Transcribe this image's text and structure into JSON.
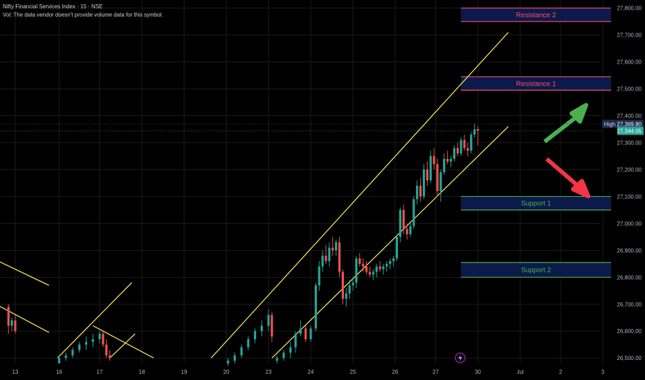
{
  "header": {
    "title": "Nifty Financial Services Index · 15 · NSE",
    "volume_note": "Vol: The data vendor doesn't provide volume data for this symbol."
  },
  "chart_data": {
    "type": "candlestick",
    "symbol": "Nifty Financial Services Index",
    "interval": "15",
    "exchange": "NSE",
    "ylim": [
      26480,
      27830
    ],
    "y_ticks": [
      26500,
      26600,
      26700,
      26800,
      26900,
      27000,
      27100,
      27200,
      27300,
      27400,
      27500,
      27600,
      27700,
      27800
    ],
    "y_tick_labels": [
      "26,500.00",
      "26,600.00",
      "26,700.00",
      "26,800.00",
      "26,900.00",
      "27,000.00",
      "27,100.00",
      "27,200.00",
      "27,300.00",
      "27,400.00",
      "27,500.00",
      "27,600.00",
      "27,700.00",
      "27,800.00"
    ],
    "x_ticks": [
      {
        "label": "13",
        "i": 0
      },
      {
        "label": "16",
        "i": 2.6
      },
      {
        "label": "17",
        "i": 5.0
      },
      {
        "label": "18",
        "i": 7.5
      },
      {
        "label": "19",
        "i": 10.0
      },
      {
        "label": "20",
        "i": 12.5
      },
      {
        "label": "23",
        "i": 15.0
      },
      {
        "label": "24",
        "i": 17.5
      },
      {
        "label": "25",
        "i": 20.0
      },
      {
        "label": "26",
        "i": 22.5
      },
      {
        "label": "27",
        "i": 24.9
      },
      {
        "label": "30",
        "i": 27.4
      },
      {
        "label": "Jul",
        "i": 29.9
      },
      {
        "label": "2",
        "i": 32.3
      },
      {
        "label": "3",
        "i": 34.8
      }
    ],
    "price_markers": {
      "high_label": "High",
      "high_value": 27369.8,
      "high_text": "27,369.80",
      "last_value": 27344.05,
      "last_text": "27,344.05"
    },
    "zones": [
      {
        "label": "Resistance 2",
        "top": 27800,
        "bottom": 27750,
        "color": "#ff4d6d"
      },
      {
        "label": "Resistance 1",
        "top": 27545,
        "bottom": 27495,
        "color": "#ff4d6d"
      },
      {
        "label": "Support 1",
        "top": 27100,
        "bottom": 27050,
        "color": "#4caf50"
      },
      {
        "label": "Support 2",
        "top": 26855,
        "bottom": 26800,
        "color": "#4caf50"
      }
    ],
    "trendlines": [
      {
        "from": {
          "i": -1.0,
          "y": 26860
        },
        "to": {
          "i": 2.0,
          "y": 26770
        }
      },
      {
        "from": {
          "i": -1.0,
          "y": 26695
        },
        "to": {
          "i": 2.0,
          "y": 26595
        }
      },
      {
        "from": {
          "i": 2.5,
          "y": 26500
        },
        "to": {
          "i": 6.9,
          "y": 26780
        }
      },
      {
        "from": {
          "i": 4.6,
          "y": 26620
        },
        "to": {
          "i": 8.2,
          "y": 26500
        }
      },
      {
        "from": {
          "i": 5.6,
          "y": 26500
        },
        "to": {
          "i": 7.1,
          "y": 26590
        }
      },
      {
        "from": {
          "i": 11.6,
          "y": 26500
        },
        "to": {
          "i": 29.2,
          "y": 27710
        }
      },
      {
        "from": {
          "i": 15.2,
          "y": 26500
        },
        "to": {
          "i": 29.2,
          "y": 27360
        }
      }
    ],
    "arrows": [
      {
        "direction": "up",
        "color": "#4caf50"
      },
      {
        "direction": "down",
        "color": "#f23645"
      }
    ],
    "candles": [
      [
        -0.4,
        26690,
        26700,
        26590,
        26620
      ],
      [
        -0.2,
        26620,
        26650,
        26600,
        26640
      ],
      [
        0.0,
        26640,
        26660,
        26590,
        26600
      ],
      [
        2.6,
        26480,
        26510,
        26480,
        26500
      ],
      [
        3.0,
        26500,
        26520,
        26490,
        26510
      ],
      [
        3.4,
        26510,
        26540,
        26500,
        26530
      ],
      [
        3.8,
        26530,
        26560,
        26520,
        26550
      ],
      [
        4.2,
        26550,
        26580,
        26530,
        26560
      ],
      [
        4.6,
        26560,
        26590,
        26540,
        26570
      ],
      [
        5.0,
        26570,
        26600,
        26555,
        26590
      ],
      [
        5.2,
        26590,
        26600,
        26540,
        26550
      ],
      [
        5.4,
        26550,
        26570,
        26500,
        26510
      ],
      [
        5.6,
        26510,
        26530,
        26490,
        26500
      ],
      [
        12.6,
        26480,
        26500,
        26470,
        26490
      ],
      [
        13.0,
        26490,
        26520,
        26480,
        26510
      ],
      [
        13.4,
        26510,
        26550,
        26500,
        26540
      ],
      [
        13.8,
        26540,
        26580,
        26530,
        26570
      ],
      [
        14.2,
        26570,
        26610,
        26555,
        26600
      ],
      [
        14.6,
        26600,
        26640,
        26580,
        26620
      ],
      [
        15.0,
        26620,
        26680,
        26600,
        26660
      ],
      [
        15.2,
        26660,
        26670,
        26560,
        26580
      ],
      [
        15.5,
        26490,
        26510,
        26480,
        26500
      ],
      [
        15.9,
        26500,
        26530,
        26490,
        26520
      ],
      [
        16.3,
        26520,
        26560,
        26500,
        26540
      ],
      [
        16.6,
        26540,
        26600,
        26520,
        26590
      ],
      [
        16.9,
        26590,
        26640,
        26580,
        26610
      ],
      [
        17.2,
        26610,
        26620,
        26560,
        26570
      ],
      [
        17.5,
        26570,
        26620,
        26560,
        26610
      ],
      [
        17.8,
        26610,
        26780,
        26600,
        26770
      ],
      [
        18.0,
        26770,
        26860,
        26750,
        26840
      ],
      [
        18.2,
        26840,
        26900,
        26820,
        26880
      ],
      [
        18.4,
        26880,
        26920,
        26850,
        26860
      ],
      [
        18.6,
        26860,
        26930,
        26840,
        26910
      ],
      [
        18.8,
        26910,
        26950,
        26880,
        26900
      ],
      [
        19.0,
        26900,
        26940,
        26880,
        26930
      ],
      [
        19.2,
        26930,
        26950,
        26800,
        26820
      ],
      [
        19.4,
        26820,
        26830,
        26700,
        26720
      ],
      [
        19.6,
        26720,
        26760,
        26690,
        26740
      ],
      [
        19.8,
        26740,
        26790,
        26720,
        26770
      ],
      [
        20.0,
        26770,
        26800,
        26750,
        26780
      ],
      [
        20.2,
        26780,
        26880,
        26760,
        26870
      ],
      [
        20.4,
        26870,
        26890,
        26840,
        26850
      ],
      [
        20.6,
        26850,
        26870,
        26820,
        26840
      ],
      [
        20.8,
        26840,
        26860,
        26810,
        26820
      ],
      [
        21.0,
        26820,
        26840,
        26800,
        26810
      ],
      [
        21.2,
        26810,
        26830,
        26790,
        26820
      ],
      [
        21.4,
        26820,
        26850,
        26800,
        26840
      ],
      [
        21.6,
        26840,
        26860,
        26820,
        26830
      ],
      [
        21.8,
        26830,
        26850,
        26810,
        26840
      ],
      [
        22.0,
        26840,
        26860,
        26820,
        26850
      ],
      [
        22.2,
        26850,
        26870,
        26830,
        26860
      ],
      [
        22.4,
        26860,
        26880,
        26840,
        26870
      ],
      [
        22.6,
        26870,
        26960,
        26860,
        26950
      ],
      [
        22.8,
        26950,
        27060,
        26930,
        27050
      ],
      [
        23.0,
        27050,
        27070,
        26960,
        26980
      ],
      [
        23.2,
        26980,
        27000,
        26940,
        26960
      ],
      [
        23.4,
        26960,
        27000,
        26950,
        26990
      ],
      [
        23.6,
        26990,
        27100,
        26980,
        27090
      ],
      [
        23.8,
        27090,
        27160,
        27070,
        27140
      ],
      [
        24.0,
        27140,
        27170,
        27080,
        27100
      ],
      [
        24.2,
        27100,
        27220,
        27090,
        27200
      ],
      [
        24.4,
        27200,
        27230,
        27140,
        27160
      ],
      [
        24.6,
        27160,
        27270,
        27150,
        27250
      ],
      [
        24.8,
        27250,
        27280,
        27200,
        27220
      ],
      [
        25.0,
        27220,
        27240,
        27100,
        27120
      ],
      [
        25.2,
        27120,
        27200,
        27080,
        27190
      ],
      [
        25.4,
        27190,
        27260,
        27180,
        27240
      ],
      [
        25.6,
        27240,
        27270,
        27220,
        27230
      ],
      [
        25.8,
        27230,
        27250,
        27210,
        27240
      ],
      [
        26.0,
        27240,
        27290,
        27230,
        27280
      ],
      [
        26.2,
        27280,
        27300,
        27250,
        27260
      ],
      [
        26.4,
        27260,
        27320,
        27250,
        27310
      ],
      [
        26.6,
        27310,
        27330,
        27270,
        27280
      ],
      [
        26.8,
        27280,
        27300,
        27250,
        27270
      ],
      [
        27.0,
        27270,
        27340,
        27260,
        27330
      ],
      [
        27.2,
        27330,
        27369.8,
        27320,
        27350
      ],
      [
        27.4,
        27350,
        27360,
        27290,
        27344.05
      ]
    ],
    "candle_fields": [
      "i",
      "open",
      "high",
      "low",
      "close"
    ],
    "colors": {
      "up": "#26a69a",
      "down": "#ef5350",
      "trendline": "#f2e55c",
      "axis_text": "#b2b5be",
      "grid": "#1b1b1b"
    }
  }
}
